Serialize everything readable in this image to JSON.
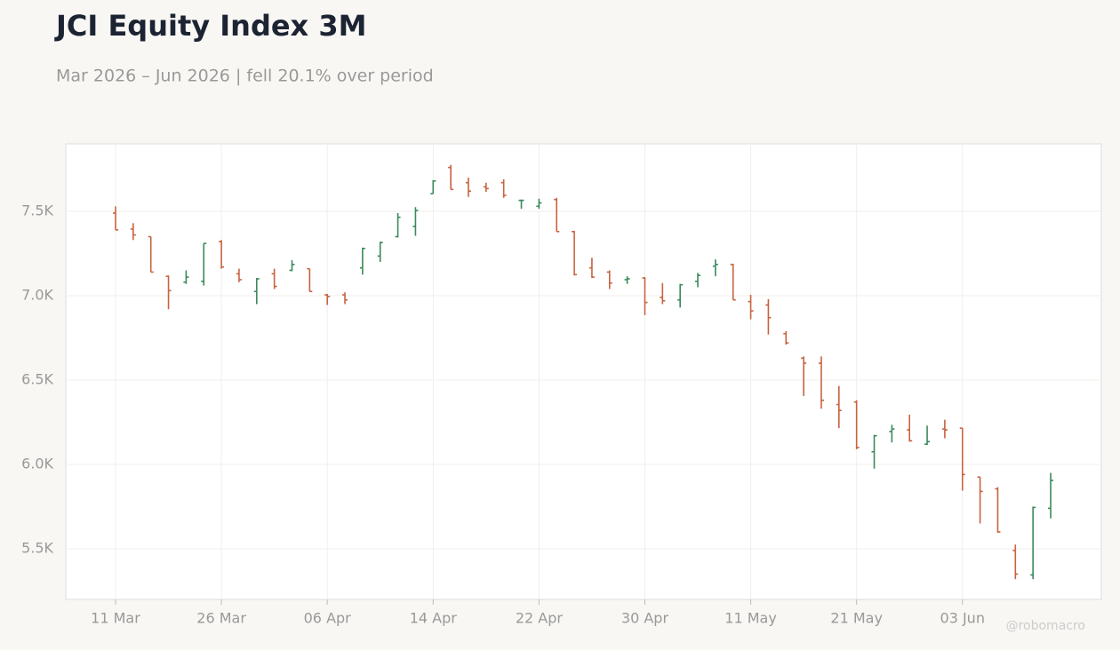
{
  "chart_data": {
    "type": "ohlc",
    "title": "JCI Equity Index 3M",
    "subtitle": "Mar 2026 – Jun 2026 | fell 20.1% over period",
    "watermark": "@robomacro",
    "categories": [
      "11 Mar",
      null,
      null,
      null,
      null,
      null,
      "26 Mar",
      null,
      null,
      null,
      null,
      null,
      "06 Apr",
      null,
      null,
      null,
      null,
      null,
      "14 Apr",
      null,
      null,
      null,
      null,
      null,
      "22 Apr",
      null,
      null,
      null,
      null,
      null,
      "30 Apr",
      null,
      null,
      null,
      null,
      null,
      "11 May",
      null,
      null,
      null,
      null,
      null,
      "21 May",
      null,
      null,
      null,
      null,
      null,
      "03 Jun",
      null,
      null,
      null,
      null,
      null
    ],
    "open": [
      7490,
      7395,
      7350,
      7115,
      7080,
      7085,
      7320,
      7130,
      7025,
      7130,
      7150,
      7160,
      7005,
      7005,
      7165,
      7235,
      7350,
      7410,
      7605,
      7760,
      7670,
      7645,
      7670,
      7565,
      7530,
      7570,
      7380,
      7165,
      7140,
      7095,
      7105,
      6990,
      6975,
      7085,
      7175,
      7185,
      6965,
      6945,
      6775,
      6630,
      6600,
      6355,
      6370,
      6075,
      6195,
      6205,
      6120,
      6210,
      6215,
      5925,
      5855,
      5490,
      5345,
      5740
    ],
    "high": [
      7530,
      7430,
      7350,
      7120,
      7150,
      7310,
      7330,
      7160,
      7105,
      7160,
      7210,
      7160,
      7010,
      7020,
      7285,
      7320,
      7490,
      7525,
      7685,
      7775,
      7700,
      7670,
      7690,
      7570,
      7575,
      7580,
      7385,
      7225,
      7150,
      7115,
      7110,
      7075,
      7070,
      7135,
      7215,
      7190,
      7005,
      6980,
      6790,
      6640,
      6640,
      6465,
      6380,
      6175,
      6235,
      6295,
      6230,
      6265,
      6215,
      5925,
      5865,
      5525,
      5750,
      5950
    ],
    "low": [
      7390,
      7330,
      7140,
      6920,
      7070,
      7060,
      7160,
      7080,
      6950,
      7040,
      7145,
      7025,
      6945,
      6950,
      7125,
      7200,
      7345,
      7355,
      7605,
      7630,
      7585,
      7615,
      7580,
      7515,
      7515,
      7380,
      7120,
      7105,
      7040,
      7070,
      6885,
      6950,
      6930,
      7050,
      7115,
      6975,
      6860,
      6770,
      6710,
      6405,
      6330,
      6215,
      6090,
      5975,
      6130,
      6135,
      6115,
      6155,
      5845,
      5650,
      5595,
      5320,
      5320,
      5680
    ],
    "close": [
      7390,
      7360,
      7140,
      7030,
      7110,
      7310,
      7170,
      7095,
      7100,
      7055,
      7185,
      7025,
      6995,
      6975,
      7280,
      7315,
      7465,
      7505,
      7680,
      7630,
      7620,
      7635,
      7595,
      7565,
      7550,
      7380,
      7125,
      7110,
      7075,
      7100,
      6960,
      6970,
      7065,
      7120,
      7185,
      6975,
      6910,
      6870,
      6720,
      6600,
      6380,
      6320,
      6100,
      6170,
      6210,
      6140,
      6135,
      6205,
      5940,
      5840,
      5600,
      5350,
      5745,
      5905
    ],
    "up_color": "#3a8a5a",
    "down_color": "#c8623f",
    "ylim": [
      5200,
      7900
    ],
    "yticks": [
      {
        "value": 5500,
        "label": "5.5K"
      },
      {
        "value": 6000,
        "label": "6.0K"
      },
      {
        "value": 6500,
        "label": "6.5K"
      },
      {
        "value": 7000,
        "label": "7.0K"
      },
      {
        "value": 7500,
        "label": "7.5K"
      }
    ],
    "grid": true
  }
}
